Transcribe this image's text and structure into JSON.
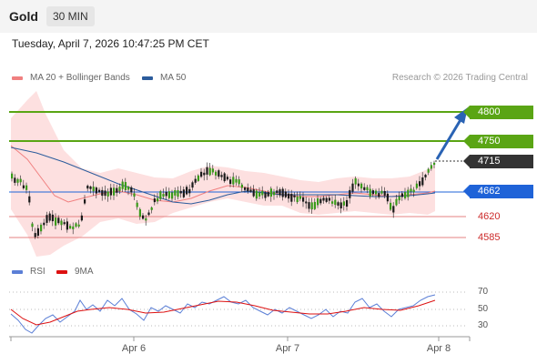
{
  "header": {
    "title": "Gold",
    "timeframe": "30 MIN"
  },
  "datetime": "Tuesday, April 7, 2026 10:47:25 PM CET",
  "legend": {
    "ma20_label": "MA 20 + Bollinger Bands",
    "ma20_color": "#f08080",
    "ma50_label": "MA 50",
    "ma50_color": "#2c5c9c"
  },
  "copyright": "Research © 2026 Trading Central",
  "levels": {
    "r2": {
      "value": "4800",
      "color": "#5aa514"
    },
    "r1": {
      "value": "4750",
      "color": "#5aa514"
    },
    "last": {
      "value": "4715",
      "color": "#333333"
    },
    "pivot": {
      "value": "4662",
      "color": "#1f63d8"
    },
    "s1": {
      "value": "4620",
      "color": "#cc2a2a"
    },
    "s2": {
      "value": "4585",
      "color": "#cc2a2a"
    }
  },
  "rsi_legend": {
    "rsi_label": "RSI",
    "rsi_color": "#5b7fd6",
    "ma_label": "9MA",
    "ma_color": "#dd1111"
  },
  "rsi_levels": [
    "70",
    "50",
    "30"
  ],
  "x_axis": [
    "Apr 6",
    "Apr 7",
    "Apr 8"
  ]
}
